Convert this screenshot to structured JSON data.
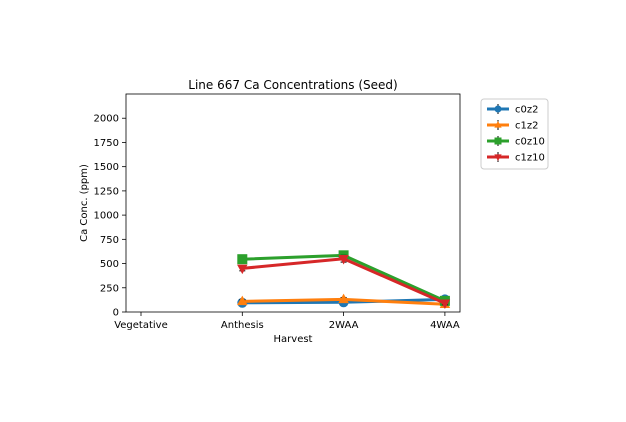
{
  "chart_data": {
    "type": "line",
    "title": "Line 667 Ca Concentrations (Seed)",
    "xlabel": "Harvest",
    "ylabel": "Ca Conc. (ppm)",
    "categories": [
      "Vegetative",
      "Anthesis",
      "2WAA",
      "4WAA"
    ],
    "ylim": [
      0,
      2250
    ],
    "yticks": [
      0,
      250,
      500,
      750,
      1000,
      1250,
      1500,
      1750,
      2000
    ],
    "grid": false,
    "legend_position": "outside-right",
    "series": [
      {
        "name": "c0z2",
        "color": "#1f77b4",
        "marker": "circle",
        "values": [
          null,
          95,
          100,
          130
        ],
        "errors": [
          null,
          15,
          15,
          15
        ]
      },
      {
        "name": "c1z2",
        "color": "#ff7f0e",
        "marker": "triangle-up",
        "values": [
          null,
          110,
          130,
          80
        ],
        "errors": [
          null,
          15,
          20,
          15
        ]
      },
      {
        "name": "c0z10",
        "color": "#2ca02c",
        "marker": "square",
        "values": [
          null,
          545,
          585,
          115
        ],
        "errors": [
          null,
          20,
          40,
          15
        ]
      },
      {
        "name": "c1z10",
        "color": "#d62728",
        "marker": "triangle-down",
        "values": [
          null,
          450,
          550,
          90
        ],
        "errors": [
          null,
          25,
          35,
          15
        ]
      }
    ]
  }
}
